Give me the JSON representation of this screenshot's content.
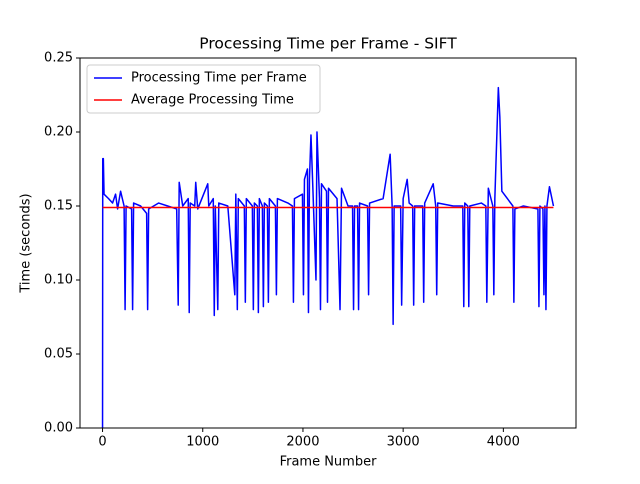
{
  "chart_data": {
    "type": "line",
    "title": "Processing Time per Frame - SIFT",
    "x_label": "Frame Number",
    "y_label": "Time (seconds)",
    "xlim": [
      -225,
      4725
    ],
    "ylim": [
      0,
      0.25
    ],
    "xticks": [
      0,
      1000,
      2000,
      3000,
      4000
    ],
    "yticks": [
      {
        "value": 0,
        "label": "0.00"
      },
      {
        "value": 0.05,
        "label": "0.05"
      },
      {
        "value": 0.1,
        "label": "0.10"
      },
      {
        "value": 0.15,
        "label": "0.15"
      },
      {
        "value": 0.2,
        "label": "0.20"
      },
      {
        "value": 0.25,
        "label": "0.25"
      }
    ],
    "grid": false,
    "legend": "upper-left",
    "series": [
      {
        "name": "Processing Time per Frame",
        "color": "#0000ff",
        "x": [
          0,
          2,
          8,
          15,
          60,
          100,
          130,
          150,
          180,
          215,
          225,
          235,
          290,
          300,
          310,
          380,
          440,
          450,
          460,
          560,
          650,
          740,
          755,
          765,
          800,
          855,
          865,
          875,
          920,
          930,
          950,
          1050,
          1060,
          1105,
          1115,
          1125,
          1150,
          1160,
          1250,
          1320,
          1330,
          1345,
          1355,
          1415,
          1425,
          1435,
          1495,
          1505,
          1515,
          1545,
          1555,
          1565,
          1595,
          1605,
          1615,
          1645,
          1655,
          1665,
          1725,
          1735,
          1745,
          1850,
          1895,
          1905,
          1915,
          1995,
          2005,
          2015,
          2045,
          2055,
          2065,
          2080,
          2100,
          2130,
          2140,
          2165,
          2175,
          2185,
          2235,
          2245,
          2255,
          2340,
          2370,
          2385,
          2450,
          2495,
          2505,
          2515,
          2545,
          2555,
          2565,
          2645,
          2655,
          2665,
          2800,
          2870,
          2890,
          2900,
          2910,
          2975,
          2985,
          3000,
          3040,
          3060,
          3095,
          3105,
          3115,
          3195,
          3205,
          3215,
          3300,
          3325,
          3335,
          3345,
          3500,
          3595,
          3605,
          3615,
          3645,
          3655,
          3665,
          3780,
          3825,
          3835,
          3850,
          3895,
          3905,
          3915,
          3950,
          3965,
          3985,
          4095,
          4105,
          4115,
          4200,
          4345,
          4355,
          4365,
          4395,
          4405,
          4415,
          4425,
          4435,
          4460,
          4500
        ],
        "values": [
          0.0,
          0.182,
          0.182,
          0.158,
          0.155,
          0.152,
          0.158,
          0.148,
          0.16,
          0.15,
          0.08,
          0.15,
          0.148,
          0.08,
          0.152,
          0.15,
          0.145,
          0.08,
          0.148,
          0.152,
          0.15,
          0.148,
          0.083,
          0.166,
          0.15,
          0.155,
          0.078,
          0.152,
          0.15,
          0.166,
          0.148,
          0.165,
          0.15,
          0.155,
          0.076,
          0.15,
          0.08,
          0.152,
          0.15,
          0.09,
          0.158,
          0.08,
          0.155,
          0.15,
          0.085,
          0.155,
          0.15,
          0.08,
          0.152,
          0.15,
          0.078,
          0.155,
          0.15,
          0.082,
          0.152,
          0.15,
          0.085,
          0.155,
          0.15,
          0.09,
          0.155,
          0.152,
          0.15,
          0.085,
          0.155,
          0.158,
          0.09,
          0.168,
          0.175,
          0.078,
          0.168,
          0.198,
          0.16,
          0.1,
          0.2,
          0.155,
          0.08,
          0.165,
          0.16,
          0.085,
          0.162,
          0.155,
          0.08,
          0.162,
          0.15,
          0.15,
          0.08,
          0.15,
          0.15,
          0.08,
          0.152,
          0.15,
          0.09,
          0.152,
          0.155,
          0.185,
          0.15,
          0.07,
          0.15,
          0.15,
          0.083,
          0.155,
          0.168,
          0.152,
          0.15,
          0.083,
          0.15,
          0.15,
          0.085,
          0.152,
          0.165,
          0.15,
          0.09,
          0.152,
          0.15,
          0.15,
          0.082,
          0.152,
          0.15,
          0.082,
          0.15,
          0.152,
          0.15,
          0.085,
          0.162,
          0.15,
          0.09,
          0.155,
          0.23,
          0.21,
          0.16,
          0.15,
          0.085,
          0.148,
          0.15,
          0.148,
          0.082,
          0.15,
          0.148,
          0.09,
          0.15,
          0.08,
          0.15,
          0.163,
          0.15
        ]
      },
      {
        "name": "Average Processing Time",
        "color": "#ff0000",
        "x": [
          0,
          4500
        ],
        "values": [
          0.149,
          0.149
        ]
      }
    ]
  }
}
